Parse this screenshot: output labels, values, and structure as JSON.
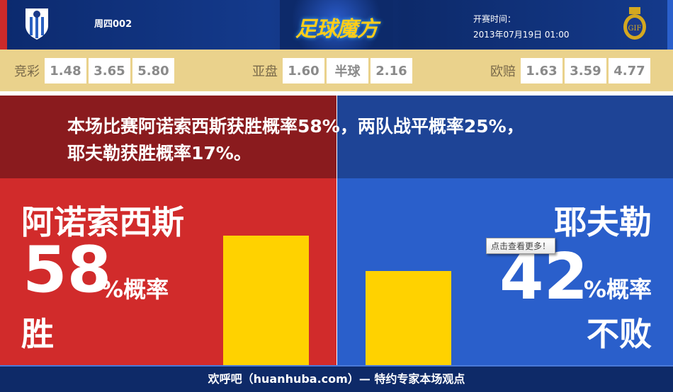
{
  "header": {
    "match_code": "周四002",
    "brand": "足球魔方",
    "kickoff_label": "开赛时间：",
    "kickoff_time": "2013年07月19日 01:00"
  },
  "odds": {
    "jingcai": {
      "label": "竞彩",
      "values": [
        "1.48",
        "3.65",
        "5.80"
      ]
    },
    "yapan": {
      "label": "亚盘",
      "values": [
        "1.60",
        "半球",
        "2.16"
      ]
    },
    "ouzhou": {
      "label": "欧赔",
      "values": [
        "1.63",
        "3.59",
        "4.77"
      ]
    }
  },
  "summary": {
    "line1": "本场比赛阿诺索西斯获胜概率58%，两队战平概率25%，",
    "line2": "耶夫勒获胜概率17%。"
  },
  "home": {
    "name": "阿诺索西斯",
    "percent": "58",
    "unit": "%概率",
    "outcome": "胜",
    "probability": 58,
    "color": "#d12b2b"
  },
  "away": {
    "name": "耶夫勒",
    "percent": "42",
    "unit": "%概率",
    "outcome": "不败",
    "probability": 42,
    "color": "#2a5fcb"
  },
  "tooltip": "点击查看更多！",
  "footer": "欢呼吧（huanhuba.com）— 特约专家本场观点"
}
